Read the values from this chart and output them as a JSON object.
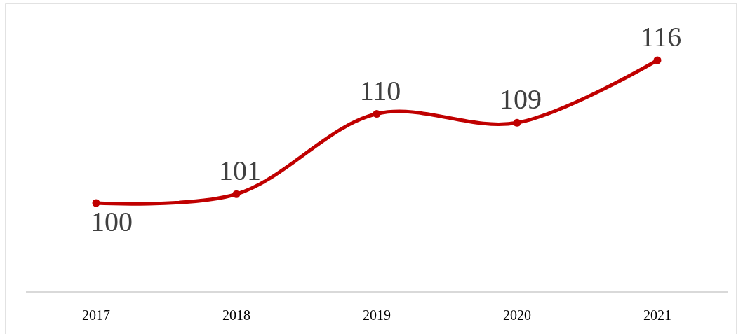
{
  "chart_data": {
    "type": "line",
    "categories": [
      "2017",
      "2018",
      "2019",
      "2020",
      "2021"
    ],
    "series": [
      {
        "color": "#c00000",
        "values": [
          100,
          101,
          110,
          109,
          116
        ]
      }
    ],
    "data_labels": true,
    "marker": "circle",
    "line_style": "solid"
  }
}
